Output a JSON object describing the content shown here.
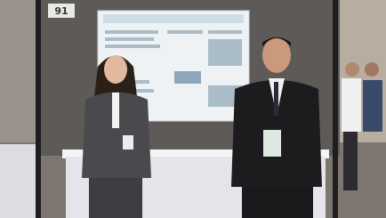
{
  "photo": {
    "sign": "91"
  }
}
